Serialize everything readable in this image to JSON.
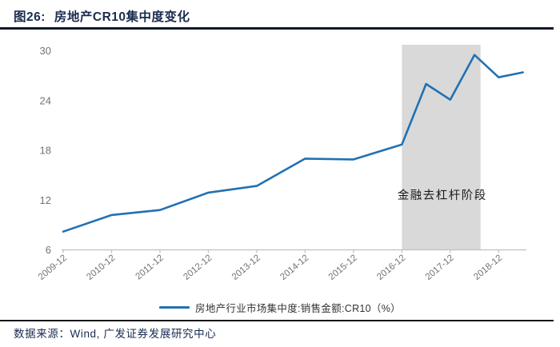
{
  "figure": {
    "title_prefix": "图26:",
    "title_text": "房地产CR10集中度变化"
  },
  "legend": {
    "label": "房地产行业市场集中度:销售金额:CR10（%）"
  },
  "footer": {
    "source_text": "数据来源：Wind, 广发证券发展研究中心"
  },
  "colors": {
    "line": "#2271b3",
    "title_navy": "#1b2c50",
    "shaded_region": "#d9d9d9",
    "axis_gray": "#c0c0c0",
    "tick_label_gray": "#737373",
    "annotation_black": "#1a1a1a"
  },
  "chart_data": {
    "type": "line",
    "title": "房地产CR10集中度变化",
    "xlabel": "",
    "ylabel": "",
    "ylim": [
      6,
      30.7
    ],
    "y_ticks": [
      6,
      12,
      18,
      24,
      30
    ],
    "x_ticks": [
      {
        "label": "2009-12",
        "months": 0
      },
      {
        "label": "2010-12",
        "months": 12
      },
      {
        "label": "2011-12",
        "months": 24
      },
      {
        "label": "2012-12",
        "months": 36
      },
      {
        "label": "2013-12",
        "months": 48
      },
      {
        "label": "2014-12",
        "months": 60
      },
      {
        "label": "2015-12",
        "months": 72
      },
      {
        "label": "2016-12",
        "months": 84
      },
      {
        "label": "2017-12",
        "months": 96
      },
      {
        "label": "2018-12",
        "months": 108
      }
    ],
    "grid": false,
    "legend_position": "bottom-center",
    "series": [
      {
        "name": "房地产行业市场集中度:销售金额:CR10（%）",
        "color": "#2271b3",
        "points": [
          {
            "date": "2009-12",
            "months": 0,
            "value": 8.2
          },
          {
            "date": "2010-12",
            "months": 12,
            "value": 10.2
          },
          {
            "date": "2011-12",
            "months": 24,
            "value": 10.8
          },
          {
            "date": "2012-12",
            "months": 36,
            "value": 12.9
          },
          {
            "date": "2013-12",
            "months": 48,
            "value": 13.7
          },
          {
            "date": "2014-12",
            "months": 60,
            "value": 17.0
          },
          {
            "date": "2015-12",
            "months": 72,
            "value": 16.9
          },
          {
            "date": "2016-12",
            "months": 84,
            "value": 18.7
          },
          {
            "date": "2017-06",
            "months": 90,
            "value": 26.0
          },
          {
            "date": "2017-12",
            "months": 96,
            "value": 24.1
          },
          {
            "date": "2018-06",
            "months": 102,
            "value": 29.5
          },
          {
            "date": "2018-12",
            "months": 108,
            "value": 26.8
          },
          {
            "date": "2019-06",
            "months": 114,
            "value": 27.4
          }
        ]
      }
    ],
    "shaded_region": {
      "label": "金融去杠杆阶段",
      "from": "2016-12",
      "to": "2018-06",
      "from_months": 84,
      "to_months": 103.5,
      "color": "#d9d9d9"
    },
    "annotation": {
      "text": "金融去杠杆阶段",
      "months": 94,
      "value": 12.6
    }
  }
}
